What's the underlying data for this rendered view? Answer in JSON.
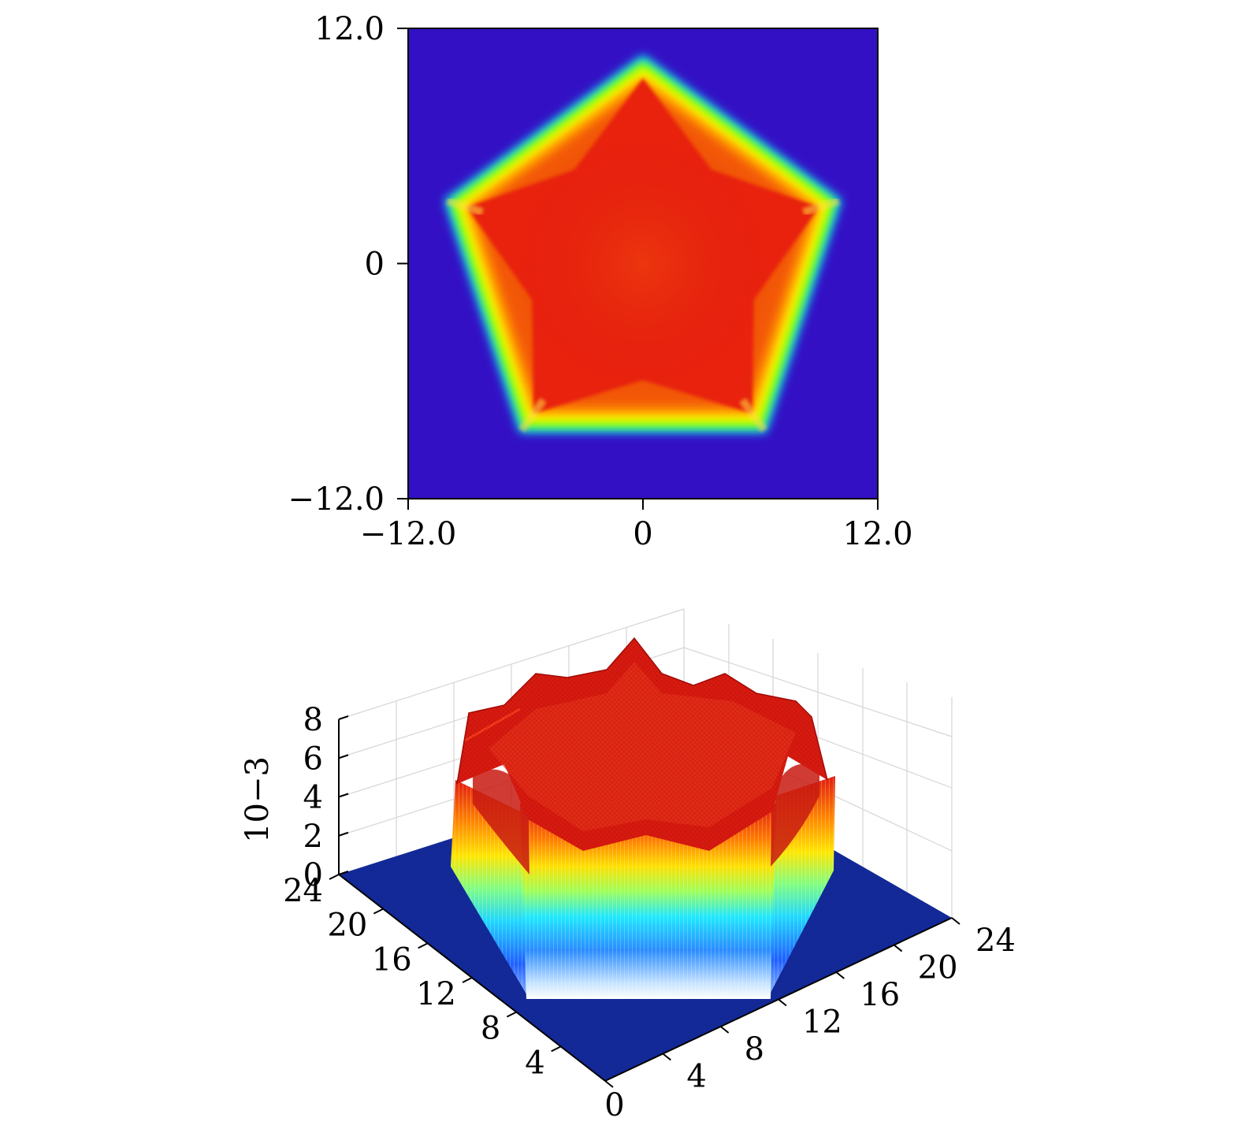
{
  "chart_data": [
    {
      "type": "heatmap",
      "title": "",
      "xlabel": "",
      "ylabel": "",
      "xlim": [
        -12.0,
        12.0
      ],
      "ylim": [
        -12.0,
        12.0
      ],
      "x_ticks": [
        {
          "value": -12.0,
          "label": "−12.0"
        },
        {
          "value": 0,
          "label": "0"
        },
        {
          "value": 12.0,
          "label": "12.0"
        }
      ],
      "y_ticks": [
        {
          "value": 12.0,
          "label": "12.0"
        },
        {
          "value": 0,
          "label": "0"
        },
        {
          "value": -12.0,
          "label": "−12.0"
        }
      ],
      "shape": "pentagon",
      "pentagon_vertices": [
        [
          0,
          10.5
        ],
        [
          10.0,
          3.2
        ],
        [
          6.2,
          -8.5
        ],
        [
          -6.2,
          -8.5
        ],
        [
          -10.0,
          3.2
        ]
      ],
      "background_color": "#3310c4",
      "grid": false,
      "colormap": [
        "#3310c4",
        "#00e0ff",
        "#7fff00",
        "#ffff00",
        "#ff9900",
        "#e82010"
      ]
    },
    {
      "type": "surface",
      "title": "",
      "zlabel": "10−3",
      "xlim": [
        0,
        24
      ],
      "ylim": [
        0,
        24
      ],
      "zlim": [
        0,
        8
      ],
      "z_ticks": [
        {
          "value": 0,
          "label": "0"
        },
        {
          "value": 2,
          "label": "2"
        },
        {
          "value": 4,
          "label": "4"
        },
        {
          "value": 6,
          "label": "6"
        },
        {
          "value": 8,
          "label": "8"
        }
      ],
      "left_axis_ticks": [
        {
          "value": 4,
          "label": "4"
        },
        {
          "value": 8,
          "label": "8"
        },
        {
          "value": 12,
          "label": "12"
        },
        {
          "value": 16,
          "label": "16"
        },
        {
          "value": 20,
          "label": "20"
        },
        {
          "value": 24,
          "label": "24"
        }
      ],
      "right_axis_ticks": [
        {
          "value": 0,
          "label": "0"
        },
        {
          "value": 4,
          "label": "4"
        },
        {
          "value": 8,
          "label": "8"
        },
        {
          "value": 12,
          "label": "12"
        },
        {
          "value": 16,
          "label": "16"
        },
        {
          "value": 20,
          "label": "20"
        },
        {
          "value": 24,
          "label": "24"
        }
      ],
      "plateau_height": 6.5,
      "peak_height": 8.0,
      "floor_color": "#0f2a9c",
      "grid": true,
      "colormap": [
        "#0000cc",
        "#0080ff",
        "#00ffff",
        "#80ff80",
        "#ffff00",
        "#ff8000",
        "#e00000"
      ]
    }
  ]
}
